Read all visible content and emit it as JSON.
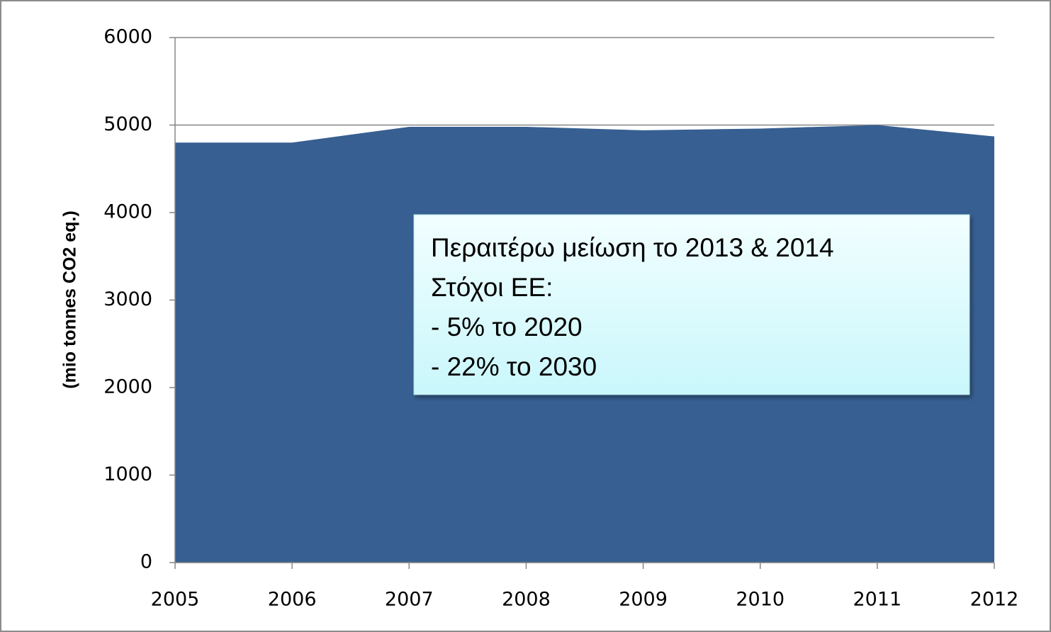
{
  "chart_data": {
    "type": "area",
    "y_label": "(mio tonnes CO2 eq.)",
    "categories": [
      "2005",
      "2006",
      "2007",
      "2008",
      "2009",
      "2010",
      "2011",
      "2012"
    ],
    "values": [
      4800,
      4800,
      4980,
      4980,
      4940,
      4960,
      5000,
      4870
    ],
    "color": "#375f91",
    "ylim": [
      0,
      6000
    ],
    "yticks": [
      0,
      1000,
      2000,
      3000,
      4000,
      5000,
      6000
    ],
    "grid": true,
    "annotation": [
      "Περαιτέρω μείωση το 2013 & 2014",
      "Στόχοι ΕΕ:",
      "- 5% το 2020",
      "- 22% το 2030"
    ]
  }
}
